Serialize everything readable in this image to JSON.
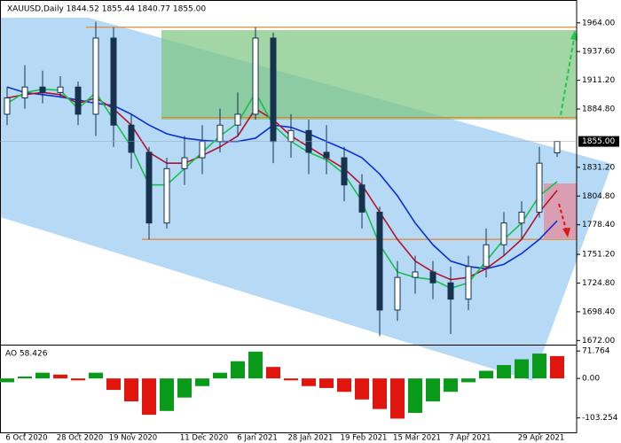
{
  "chart_data": {
    "type": "candlestick",
    "title": "XAUUSD,Daily  1844.52 1855.44 1840.77 1855.00",
    "categories": [
      null,
      "6 Oct 2020",
      null,
      null,
      "28 Oct 2020",
      null,
      null,
      "19 Nov 2020",
      null,
      null,
      null,
      "11 Dec 2020",
      null,
      null,
      "6 Jan 2021",
      null,
      null,
      "28 Jan 2021",
      null,
      null,
      "19 Feb 2021",
      null,
      null,
      "15 Mar 2021",
      null,
      null,
      "7 Apr 2021",
      null,
      null,
      null,
      "29 Apr 2021",
      null
    ],
    "open": [
      1880,
      1895,
      1905,
      1900,
      1905,
      1880,
      1950,
      1870,
      1845,
      1780,
      1830,
      1840,
      1855,
      1870,
      1880,
      1950,
      1855,
      1865,
      1845,
      1840,
      1815,
      1790,
      1700,
      1730,
      1735,
      1725,
      1710,
      1740,
      1760,
      1780,
      1790,
      1844.52
    ],
    "high": [
      1905,
      1925,
      1920,
      1915,
      1910,
      1965,
      1960,
      1880,
      1850,
      1840,
      1860,
      1870,
      1885,
      1900,
      1960,
      1955,
      1880,
      1875,
      1870,
      1850,
      1825,
      1795,
      1745,
      1750,
      1745,
      1740,
      1750,
      1775,
      1790,
      1800,
      1850,
      1855.44
    ],
    "low": [
      1870,
      1885,
      1890,
      1895,
      1870,
      1860,
      1850,
      1830,
      1765,
      1775,
      1815,
      1825,
      1845,
      1860,
      1875,
      1835,
      1840,
      1825,
      1825,
      1800,
      1775,
      1676,
      1690,
      1715,
      1710,
      1678,
      1700,
      1730,
      1750,
      1765,
      1785,
      1840.77
    ],
    "close": [
      1895,
      1905,
      1900,
      1905,
      1880,
      1950,
      1870,
      1845,
      1780,
      1830,
      1840,
      1855,
      1870,
      1880,
      1950,
      1855,
      1865,
      1845,
      1840,
      1815,
      1790,
      1700,
      1730,
      1735,
      1725,
      1710,
      1740,
      1760,
      1780,
      1790,
      1835,
      1855
    ],
    "candle_color": "#16324f",
    "series": [
      {
        "color": "#0b2fd6",
        "values": [
          1905,
          1900,
          1898,
          1896,
          1893,
          1890,
          1888,
          1880,
          1870,
          1862,
          1858,
          1856,
          1855,
          1855,
          1858,
          1870,
          1868,
          1862,
          1855,
          1848,
          1840,
          1825,
          1805,
          1780,
          1760,
          1745,
          1740,
          1738,
          1742,
          1752,
          1765,
          1782
        ]
      },
      {
        "color": "#b5122e",
        "values": [
          1895,
          1898,
          1900,
          1898,
          1890,
          1895,
          1885,
          1870,
          1845,
          1835,
          1835,
          1842,
          1850,
          1860,
          1885,
          1875,
          1860,
          1850,
          1840,
          1830,
          1815,
          1790,
          1765,
          1745,
          1735,
          1728,
          1730,
          1738,
          1750,
          1765,
          1790,
          1810
        ]
      },
      {
        "color": "#14c14a",
        "values": [
          1890,
          1900,
          1903,
          1902,
          1885,
          1900,
          1875,
          1850,
          1815,
          1815,
          1830,
          1845,
          1860,
          1872,
          1900,
          1870,
          1855,
          1845,
          1838,
          1825,
          1800,
          1760,
          1735,
          1730,
          1728,
          1720,
          1725,
          1745,
          1765,
          1780,
          1805,
          1818
        ]
      }
    ],
    "ylim": [
      1669,
      1985
    ],
    "yticks": [
      {
        "value": 1964,
        "label": "1964.00"
      },
      {
        "value": 1937.6,
        "label": "1937.60"
      },
      {
        "value": 1911.2,
        "label": "1911.20"
      },
      {
        "value": 1884.8,
        "label": "1884.80"
      },
      {
        "value": 1831.2,
        "label": "1831.20"
      },
      {
        "value": 1804.8,
        "label": "1804.80"
      },
      {
        "value": 1778.4,
        "label": "1778.40"
      },
      {
        "value": 1751.2,
        "label": "1751.20"
      },
      {
        "value": 1724.8,
        "label": "1724.80"
      },
      {
        "value": 1698.4,
        "label": "1698.40"
      },
      {
        "value": 1672,
        "label": "1672.00"
      }
    ],
    "last_price": {
      "value": 1855,
      "label": "1855.00"
    },
    "levels": [
      1960,
      1877,
      1765
    ],
    "level_color": "#e8822a",
    "ao": {
      "title": "AO 58.426",
      "values": [
        -10,
        5,
        15,
        10,
        -5,
        15,
        -30,
        -60,
        -95,
        -85,
        -50,
        -20,
        15,
        45,
        70,
        30,
        -5,
        -20,
        -25,
        -35,
        -55,
        -80,
        -105,
        -90,
        -60,
        -35,
        -10,
        20,
        35,
        50,
        65,
        58.426
      ],
      "up_color": "#0a9a1a",
      "down_color": "#e0160e",
      "ylim": [
        -141,
        86
      ],
      "yticks": [
        {
          "value": 71.764,
          "label": "71.764"
        },
        {
          "value": 0,
          "label": "0.00"
        },
        {
          "value": -103.254,
          "label": "-103.254"
        }
      ]
    }
  }
}
